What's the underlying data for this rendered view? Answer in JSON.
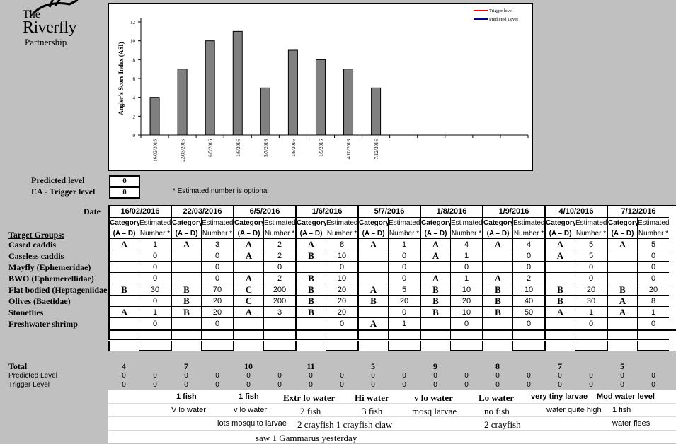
{
  "logo": {
    "line1": "The",
    "line2": "Riverfly",
    "line3": "Partnership"
  },
  "chart_data": {
    "type": "bar",
    "categories": [
      "16/02/2016",
      "22/03/2016",
      "6/5/2016",
      "1/6/2016",
      "5/7/2016",
      "1/8/2016",
      "1/9/2016",
      "4/10/2016",
      "7/12/2016"
    ],
    "values": [
      4,
      7,
      10,
      11,
      5,
      9,
      8,
      7,
      5
    ],
    "ylabel": "Angler's Score Index (ASI)",
    "ylim": [
      0,
      12
    ],
    "yticks": [
      "0",
      "2",
      "4",
      "6",
      "8",
      "10",
      "12"
    ],
    "legend": [
      {
        "name": "Trigger level",
        "color": "#ff0000"
      },
      {
        "name": "Predicted Level",
        "color": "#000099"
      }
    ],
    "legend_position": "top-right",
    "bar_color": "#808080",
    "slots": 14
  },
  "levels": {
    "predicted_label": "Predicted level",
    "predicted_value": "0",
    "trigger_label": "EA - Trigger level",
    "trigger_value": "0",
    "optional_note": "* Estimated number is optional"
  },
  "table": {
    "date_label": "Date",
    "target_groups_label": "Target Groups:",
    "cat_header": "Category",
    "cat_sub": "(A – D)",
    "est_header": "Estimated",
    "est_sub": "Number *",
    "dates": [
      "16/02/2016",
      "22/03/2016",
      "6/5/2016",
      "1/6/2016",
      "5/7/2016",
      "1/8/2016",
      "1/9/2016",
      "4/10/2016",
      "7/12/2016"
    ],
    "rows": [
      {
        "label": "Cased caddis",
        "cells": [
          [
            "A",
            "1"
          ],
          [
            "A",
            "3"
          ],
          [
            "A",
            "2"
          ],
          [
            "A",
            "8"
          ],
          [
            "A",
            "1"
          ],
          [
            "A",
            "4"
          ],
          [
            "A",
            "4"
          ],
          [
            "A",
            "5"
          ],
          [
            "A",
            "5"
          ]
        ]
      },
      {
        "label": "Caseless caddis",
        "cells": [
          [
            "",
            "0"
          ],
          [
            "",
            "0"
          ],
          [
            "A",
            "2"
          ],
          [
            "B",
            "10"
          ],
          [
            "",
            "0"
          ],
          [
            "A",
            "1"
          ],
          [
            "",
            "0"
          ],
          [
            "A",
            "5"
          ],
          [
            "",
            "0"
          ]
        ]
      },
      {
        "label": "Mayfly (Ephemeridae)",
        "cells": [
          [
            "",
            "0"
          ],
          [
            "",
            "0"
          ],
          [
            "",
            "0"
          ],
          [
            "",
            "0"
          ],
          [
            "",
            "0"
          ],
          [
            "",
            "0"
          ],
          [
            "",
            "0"
          ],
          [
            "",
            "0"
          ],
          [
            "",
            "0"
          ]
        ]
      },
      {
        "label": "BWO (Ephemerellidae)",
        "cells": [
          [
            "",
            "0"
          ],
          [
            "",
            "0"
          ],
          [
            "A",
            "2"
          ],
          [
            "B",
            "10"
          ],
          [
            "",
            "0"
          ],
          [
            "A",
            "1"
          ],
          [
            "A",
            "2"
          ],
          [
            "",
            "0"
          ],
          [
            "",
            "0"
          ]
        ]
      },
      {
        "label": "Flat bodied (Heptageniidae)",
        "cells": [
          [
            "B",
            "30"
          ],
          [
            "B",
            "70"
          ],
          [
            "C",
            "200"
          ],
          [
            "B",
            "20"
          ],
          [
            "A",
            "5"
          ],
          [
            "B",
            "10"
          ],
          [
            "B",
            "10"
          ],
          [
            "B",
            "20"
          ],
          [
            "B",
            "20"
          ]
        ]
      },
      {
        "label": "Olives (Baetidae)",
        "cells": [
          [
            "",
            "0"
          ],
          [
            "B",
            "20"
          ],
          [
            "C",
            "200"
          ],
          [
            "B",
            "20"
          ],
          [
            "B",
            "20"
          ],
          [
            "B",
            "20"
          ],
          [
            "B",
            "40"
          ],
          [
            "B",
            "30"
          ],
          [
            "A",
            "8"
          ]
        ]
      },
      {
        "label": "Stoneflies",
        "cells": [
          [
            "A",
            "1"
          ],
          [
            "B",
            "20"
          ],
          [
            "A",
            "3"
          ],
          [
            "B",
            "20"
          ],
          [
            "",
            "0"
          ],
          [
            "B",
            "10"
          ],
          [
            "B",
            "50"
          ],
          [
            "A",
            "1"
          ],
          [
            "A",
            "1"
          ]
        ]
      },
      {
        "label": "Freshwater shrimp",
        "cells": [
          [
            "",
            "0"
          ],
          [
            "",
            "0"
          ],
          [
            "",
            "",
            ""
          ],
          [
            "",
            "0"
          ],
          [
            "A",
            "1"
          ],
          [
            "",
            "0"
          ],
          [
            "",
            "0"
          ],
          [
            "",
            "0"
          ],
          [
            "",
            "0"
          ]
        ]
      }
    ],
    "total_label": "Total",
    "totals": [
      "4",
      "7",
      "10",
      "11",
      "5",
      "9",
      "8",
      "7",
      "5"
    ],
    "predicted_row_label": "Predicted Level",
    "trigger_row_label": "Trigger Level",
    "zero": "0"
  },
  "notes": {
    "row1": [
      "1 fish",
      "1 fish",
      "Extr lo water",
      "Hi water",
      "v lo water",
      "Lo water",
      "very tiny larvae",
      "Mod water level"
    ],
    "row2": [
      "V lo water",
      "v lo water",
      "2 fish",
      "3 fish",
      "mosq larvae",
      "no fish",
      "water quite high",
      "1 fish"
    ],
    "row3": [
      "lots mosquito larvae",
      "2 crayfish 1 crayfish claw",
      "2 crayfish",
      "water flees"
    ],
    "row4": [
      "saw 1 Gammarus yesterday"
    ]
  }
}
